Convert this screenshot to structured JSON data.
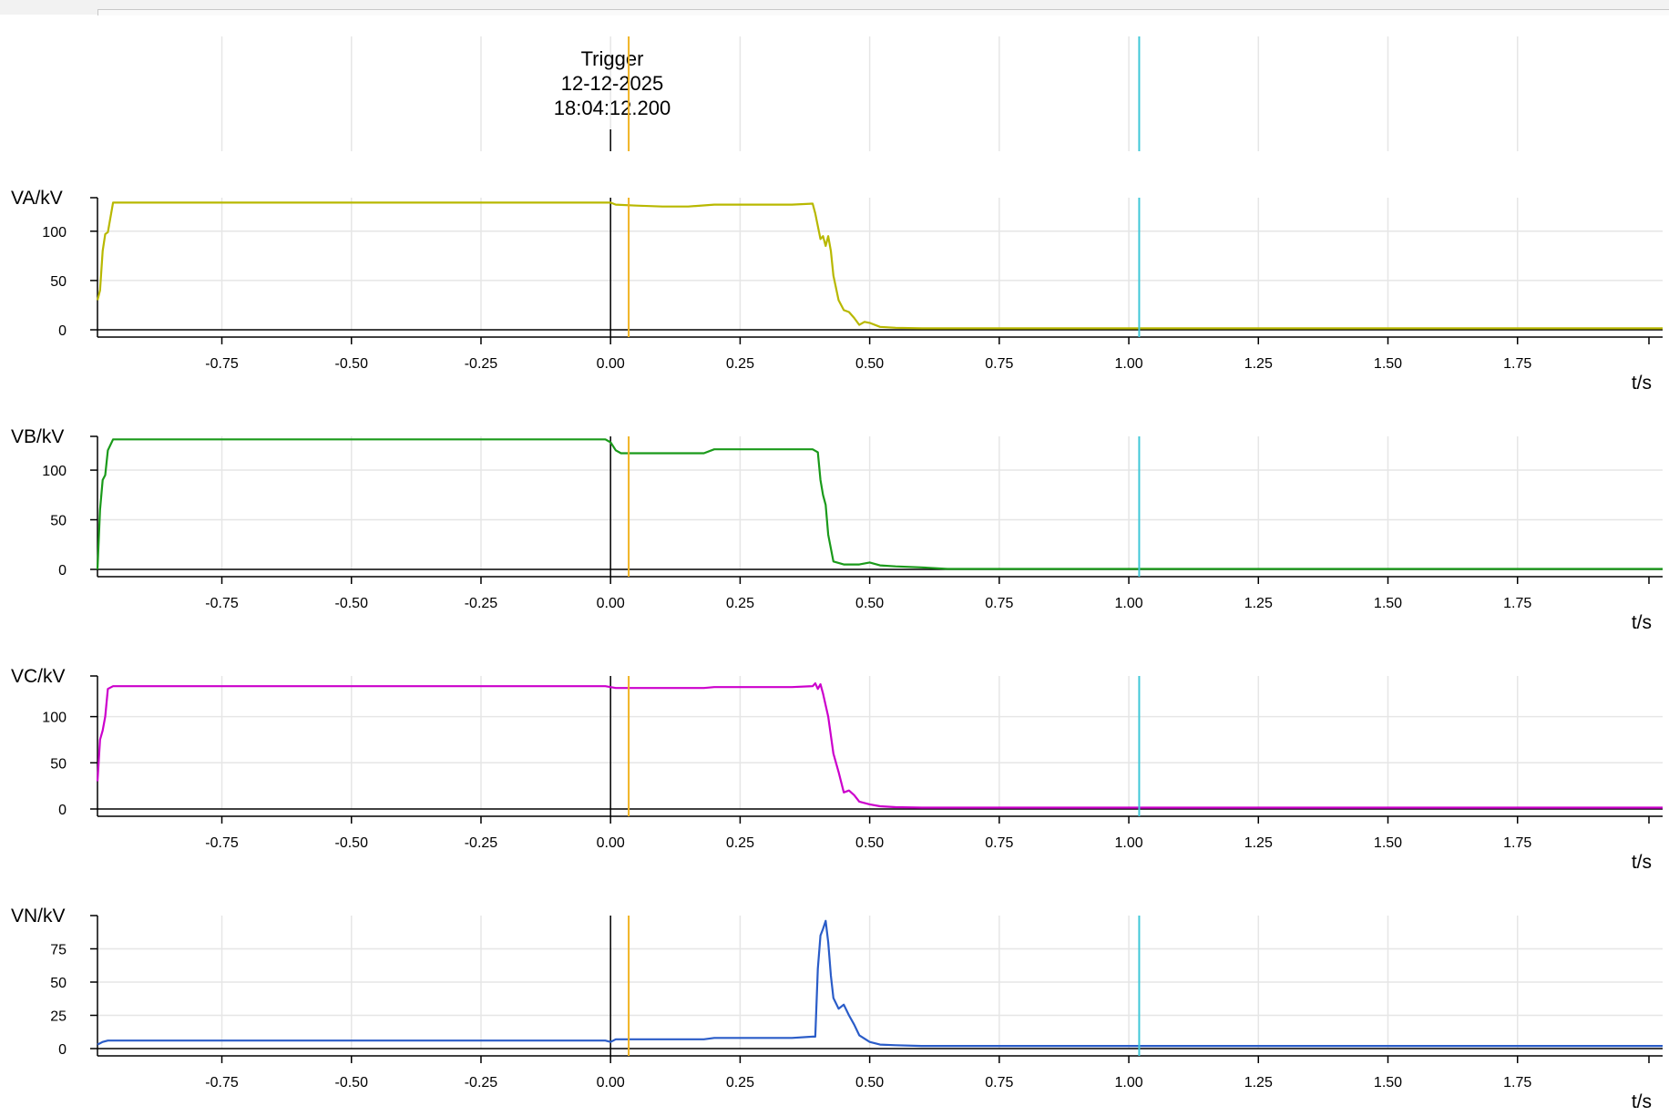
{
  "trigger": {
    "title": "Trigger",
    "date": "12-12-2025",
    "time": "18:04:12.200",
    "t": 0.0
  },
  "cursors": [
    {
      "name": "cursor-orange",
      "t": 0.035,
      "color": "#f0b323"
    },
    {
      "name": "cursor-cyan",
      "t": 1.02,
      "color": "#40c8d8"
    }
  ],
  "x_axis": {
    "label": "t/s",
    "range": [
      -0.99,
      2.03
    ],
    "ticks": [
      -0.75,
      -0.5,
      -0.25,
      0.0,
      0.25,
      0.5,
      0.75,
      1.0,
      1.25,
      1.5,
      1.75
    ],
    "tick_labels": [
      "-0.75",
      "-0.50",
      "-0.25",
      "0.00",
      "0.25",
      "0.50",
      "0.75",
      "1.00",
      "1.25",
      "1.50",
      "1.75"
    ]
  },
  "chart_data": [
    {
      "type": "line",
      "ylabel": "VA/kV",
      "xlabel": "t/s",
      "ylim": [
        0,
        134
      ],
      "yticks": [
        0,
        50,
        100
      ],
      "color": "#b8b800",
      "series": [
        {
          "x": [
            -0.99,
            -0.985,
            -0.98,
            -0.975,
            -0.97,
            -0.96,
            -0.95,
            -0.9,
            -0.5,
            0.0,
            0.01,
            0.05,
            0.1,
            0.15,
            0.2,
            0.3,
            0.35,
            0.39,
            0.395,
            0.405,
            0.41,
            0.415,
            0.42,
            0.425,
            0.43,
            0.44,
            0.45,
            0.46,
            0.47,
            0.48,
            0.49,
            0.5,
            0.52,
            0.55,
            0.6,
            0.65,
            1.0,
            1.5,
            2.03
          ],
          "y": [
            30,
            40,
            80,
            97,
            99,
            129,
            129,
            129,
            129,
            129,
            127,
            126,
            125,
            125,
            127,
            127,
            127,
            128,
            118,
            92,
            95,
            85,
            95,
            80,
            55,
            30,
            20,
            18,
            12,
            5,
            8,
            7,
            3,
            2,
            1.5,
            1.5,
            1.5,
            1.5,
            1.5
          ]
        }
      ]
    },
    {
      "type": "line",
      "ylabel": "VB/kV",
      "xlabel": "t/s",
      "ylim": [
        0,
        134
      ],
      "yticks": [
        0,
        50,
        100
      ],
      "color": "#1a9a1a",
      "series": [
        {
          "x": [
            -0.99,
            -0.985,
            -0.98,
            -0.975,
            -0.97,
            -0.96,
            -0.95,
            -0.9,
            -0.5,
            -0.01,
            0.0,
            0.01,
            0.02,
            0.05,
            0.1,
            0.15,
            0.18,
            0.2,
            0.3,
            0.35,
            0.39,
            0.4,
            0.405,
            0.41,
            0.415,
            0.42,
            0.43,
            0.45,
            0.48,
            0.5,
            0.52,
            0.55,
            0.6,
            0.65,
            1.0,
            1.5,
            2.03
          ],
          "y": [
            0,
            60,
            90,
            95,
            120,
            131,
            131,
            131,
            131,
            131,
            128,
            120,
            117,
            117,
            117,
            117,
            117,
            121,
            121,
            121,
            121,
            118,
            90,
            75,
            65,
            35,
            8,
            5,
            5,
            7,
            4,
            3,
            2,
            0.5,
            0.5,
            0.5,
            0.5
          ]
        }
      ]
    },
    {
      "type": "line",
      "ylabel": "VC/kV",
      "xlabel": "t/s",
      "ylim": [
        0,
        144
      ],
      "yticks": [
        0,
        50,
        100
      ],
      "color": "#cc00cc",
      "series": [
        {
          "x": [
            -0.99,
            -0.985,
            -0.98,
            -0.975,
            -0.97,
            -0.96,
            -0.95,
            -0.9,
            -0.5,
            -0.01,
            0.01,
            0.05,
            0.1,
            0.15,
            0.18,
            0.2,
            0.3,
            0.35,
            0.39,
            0.395,
            0.4,
            0.405,
            0.41,
            0.42,
            0.43,
            0.44,
            0.45,
            0.46,
            0.47,
            0.48,
            0.5,
            0.52,
            0.55,
            0.6,
            0.65,
            1.0,
            1.5,
            2.03
          ],
          "y": [
            30,
            75,
            85,
            100,
            130,
            133,
            133,
            133,
            133,
            133,
            131,
            131,
            131,
            131,
            131,
            132,
            132,
            132,
            133,
            136,
            130,
            135,
            125,
            100,
            60,
            40,
            18,
            20,
            15,
            8,
            5,
            3,
            2,
            1.5,
            1.5,
            1.5,
            1.5,
            1.5
          ]
        }
      ]
    },
    {
      "type": "line",
      "ylabel": "VN/kV",
      "xlabel": "t/s",
      "ylim": [
        0,
        100
      ],
      "yticks": [
        0,
        25,
        50,
        75
      ],
      "color": "#2a5cc8",
      "series": [
        {
          "x": [
            -0.99,
            -0.98,
            -0.97,
            -0.95,
            -0.9,
            -0.5,
            -0.01,
            0.0,
            0.01,
            0.1,
            0.18,
            0.2,
            0.3,
            0.35,
            0.39,
            0.395,
            0.4,
            0.405,
            0.41,
            0.415,
            0.42,
            0.425,
            0.43,
            0.44,
            0.45,
            0.46,
            0.47,
            0.48,
            0.5,
            0.52,
            0.55,
            0.6,
            0.65,
            1.0,
            1.5,
            2.03
          ],
          "y": [
            3,
            5,
            6,
            6,
            6,
            6,
            6,
            5,
            7,
            7,
            7,
            8,
            8,
            8,
            9,
            9,
            60,
            85,
            90,
            96,
            80,
            55,
            38,
            30,
            33,
            25,
            18,
            10,
            5,
            3,
            2.5,
            2,
            2,
            2,
            2,
            2
          ]
        }
      ]
    }
  ]
}
